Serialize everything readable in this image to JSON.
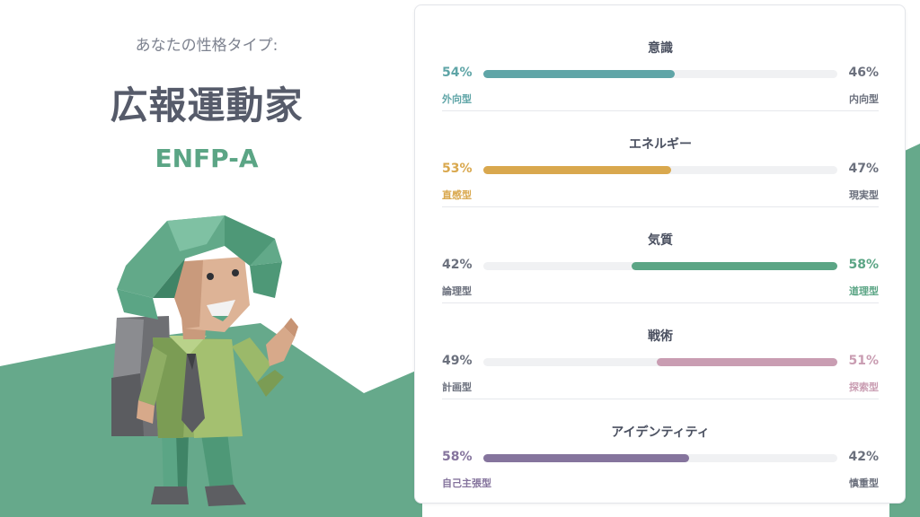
{
  "colors": {
    "mind": "#5fa5a7",
    "energy": "#d9a84e",
    "nature": "#5ba585",
    "tactics": "#c99db2",
    "identity": "#85749d",
    "hill": "#66a98b"
  },
  "header": {
    "intro": "あなたの性格タイプ:",
    "type_name": "広報運動家",
    "type_code": "ENFP-A"
  },
  "traits": [
    {
      "title": "意識",
      "left_pct": "54%",
      "right_pct": "46%",
      "left_label": "外向型",
      "right_label": "内向型",
      "value": 0.54,
      "fill_side": "left",
      "color_key": "mind"
    },
    {
      "title": "エネルギー",
      "left_pct": "53%",
      "right_pct": "47%",
      "left_label": "直感型",
      "right_label": "現実型",
      "value": 0.53,
      "fill_side": "left",
      "color_key": "energy"
    },
    {
      "title": "気質",
      "left_pct": "42%",
      "right_pct": "58%",
      "left_label": "論理型",
      "right_label": "道理型",
      "value": 0.58,
      "fill_side": "right",
      "color_key": "nature"
    },
    {
      "title": "戦術",
      "left_pct": "49%",
      "right_pct": "51%",
      "left_label": "計画型",
      "right_label": "探索型",
      "value": 0.51,
      "fill_side": "right",
      "color_key": "tactics"
    },
    {
      "title": "アイデンティティ",
      "left_pct": "58%",
      "right_pct": "42%",
      "left_label": "自己主張型",
      "right_label": "慎重型",
      "value": 0.58,
      "fill_side": "left",
      "color_key": "identity"
    }
  ],
  "illustration": {
    "icon": "explorer-character-icon"
  }
}
